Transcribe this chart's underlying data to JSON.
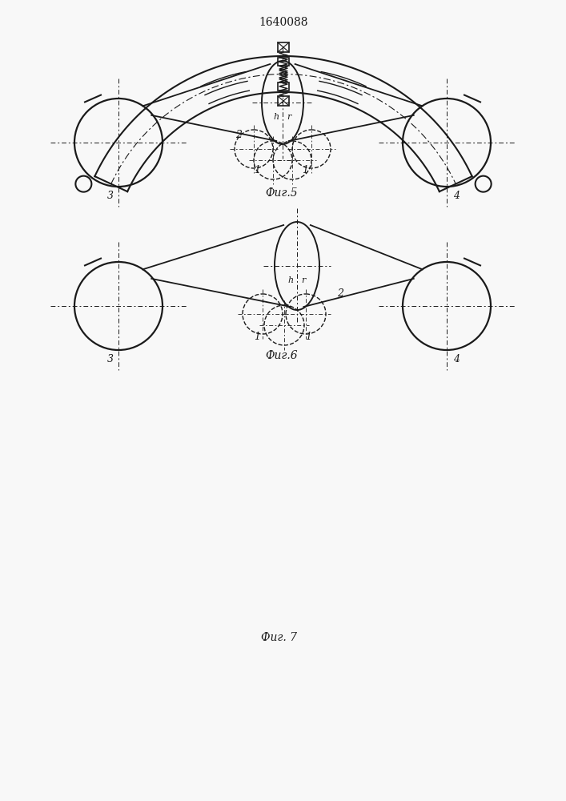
{
  "title": "1640088",
  "fig5_label": "Фиг.5",
  "fig6_label": "Фиг.6",
  "fig7_label": "Фиг. 7",
  "bg_color": "#f8f8f8",
  "line_color": "#1a1a1a"
}
